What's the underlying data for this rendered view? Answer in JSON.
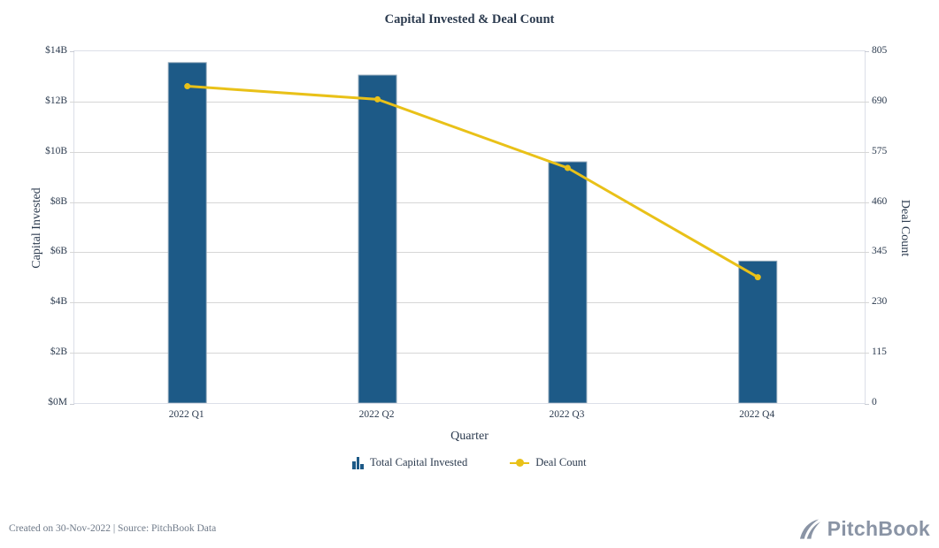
{
  "header": {
    "title": "Capital Invested & Deal Count"
  },
  "chart_data": {
    "type": "bar",
    "subtype": "bar-and-line-dual-axis",
    "categories": [
      "2022 Q1",
      "2022 Q2",
      "2022 Q3",
      "2022 Q4"
    ],
    "series": [
      {
        "name": "Total Capital Invested",
        "type": "bar",
        "axis": "left",
        "unit": "USD billions",
        "values": [
          13.55,
          13.05,
          9.6,
          5.65
        ],
        "color": "#1d5a87"
      },
      {
        "name": "Deal Count",
        "type": "line",
        "axis": "right",
        "values": [
          725,
          695,
          538,
          288
        ],
        "color": "#e9c118"
      }
    ],
    "left_axis": {
      "label": "Capital Invested",
      "min": 0,
      "max": 14,
      "ticks": [
        "$14B",
        "$12B",
        "$10B",
        "$8B",
        "$6B",
        "$4B",
        "$2B",
        "$0M"
      ]
    },
    "right_axis": {
      "label": "Deal Count",
      "min": 0,
      "max": 805,
      "ticks": [
        "805",
        "690",
        "575",
        "460",
        "345",
        "230",
        "115",
        "0"
      ]
    },
    "x_axis": {
      "label": "Quarter"
    },
    "grid": true,
    "legend_position": "bottom",
    "legend": [
      "Total Capital Invested",
      "Deal Count"
    ]
  },
  "colors": {
    "bar_fill": "#1d5a87",
    "bar_stroke": "#93a9bb",
    "line": "#e9c118",
    "gridline": "#d6d6d6",
    "text": "#2b3a4e",
    "footer_text": "#6f7a89",
    "logo_gray": "#8a94a5"
  },
  "footer": {
    "created": "Created on 30-Nov-2022 | Source: PitchBook Data",
    "logo_text": "PitchBook"
  }
}
